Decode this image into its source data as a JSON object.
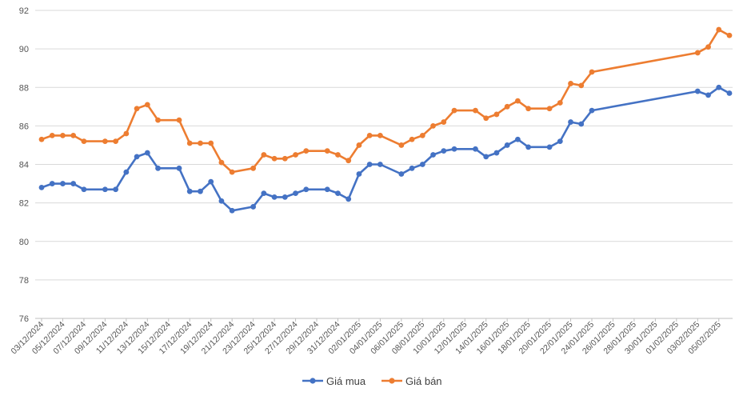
{
  "chart_data": {
    "type": "line",
    "title": "",
    "xlabel": "",
    "ylabel": "",
    "ylim": [
      76,
      92
    ],
    "yticks": [
      76,
      78,
      80,
      82,
      84,
      86,
      88,
      90,
      92
    ],
    "grid": "horizontal",
    "legend_position": "bottom",
    "x_axis": {
      "start": "2024-12-03",
      "end": "2025-02-06",
      "tick_labels": [
        "03/12/2024",
        "05/12/2024",
        "07/12/2024",
        "09/12/2024",
        "11/12/2024",
        "13/12/2024",
        "15/12/2024",
        "17/12/2024",
        "19/12/2024",
        "21/12/2024",
        "23/12/2024",
        "25/12/2024",
        "27/12/2024",
        "29/12/2024",
        "31/12/2024",
        "02/01/2025",
        "04/01/2025",
        "06/01/2025",
        "08/01/2025",
        "10/01/2025",
        "12/01/2025",
        "14/01/2025",
        "16/01/2025",
        "18/01/2025",
        "20/01/2025",
        "22/01/2025",
        "24/01/2025",
        "26/01/2025",
        "28/01/2025",
        "30/01/2025",
        "01/02/2025",
        "03/02/2025",
        "05/02/2025"
      ]
    },
    "series": [
      {
        "name": "Giá mua",
        "color": "#4472C4",
        "points": [
          [
            "2024-12-03",
            82.8
          ],
          [
            "2024-12-04",
            83.0
          ],
          [
            "2024-12-05",
            83.0
          ],
          [
            "2024-12-06",
            83.0
          ],
          [
            "2024-12-07",
            82.7
          ],
          [
            "2024-12-09",
            82.7
          ],
          [
            "2024-12-10",
            82.7
          ],
          [
            "2024-12-11",
            83.6
          ],
          [
            "2024-12-12",
            84.4
          ],
          [
            "2024-12-13",
            84.6
          ],
          [
            "2024-12-14",
            83.8
          ],
          [
            "2024-12-16",
            83.8
          ],
          [
            "2024-12-17",
            82.6
          ],
          [
            "2024-12-18",
            82.6
          ],
          [
            "2024-12-19",
            83.1
          ],
          [
            "2024-12-20",
            82.1
          ],
          [
            "2024-12-21",
            81.6
          ],
          [
            "2024-12-23",
            81.8
          ],
          [
            "2024-12-24",
            82.5
          ],
          [
            "2024-12-25",
            82.3
          ],
          [
            "2024-12-26",
            82.3
          ],
          [
            "2024-12-27",
            82.5
          ],
          [
            "2024-12-28",
            82.7
          ],
          [
            "2024-12-30",
            82.7
          ],
          [
            "2024-12-31",
            82.5
          ],
          [
            "2025-01-01",
            82.2
          ],
          [
            "2025-01-02",
            83.5
          ],
          [
            "2025-01-03",
            84.0
          ],
          [
            "2025-01-04",
            84.0
          ],
          [
            "2025-01-06",
            83.5
          ],
          [
            "2025-01-07",
            83.8
          ],
          [
            "2025-01-08",
            84.0
          ],
          [
            "2025-01-09",
            84.5
          ],
          [
            "2025-01-10",
            84.7
          ],
          [
            "2025-01-11",
            84.8
          ],
          [
            "2025-01-13",
            84.8
          ],
          [
            "2025-01-14",
            84.4
          ],
          [
            "2025-01-15",
            84.6
          ],
          [
            "2025-01-16",
            85.0
          ],
          [
            "2025-01-17",
            85.3
          ],
          [
            "2025-01-18",
            84.9
          ],
          [
            "2025-01-20",
            84.9
          ],
          [
            "2025-01-21",
            85.2
          ],
          [
            "2025-01-22",
            86.2
          ],
          [
            "2025-01-23",
            86.1
          ],
          [
            "2025-01-24",
            86.8
          ],
          [
            "2025-02-03",
            87.8
          ],
          [
            "2025-02-04",
            87.6
          ],
          [
            "2025-02-05",
            88.0
          ],
          [
            "2025-02-06",
            87.7
          ]
        ]
      },
      {
        "name": "Giá bán",
        "color": "#ED7D31",
        "points": [
          [
            "2024-12-03",
            85.3
          ],
          [
            "2024-12-04",
            85.5
          ],
          [
            "2024-12-05",
            85.5
          ],
          [
            "2024-12-06",
            85.5
          ],
          [
            "2024-12-07",
            85.2
          ],
          [
            "2024-12-09",
            85.2
          ],
          [
            "2024-12-10",
            85.2
          ],
          [
            "2024-12-11",
            85.6
          ],
          [
            "2024-12-12",
            86.9
          ],
          [
            "2024-12-13",
            87.1
          ],
          [
            "2024-12-14",
            86.3
          ],
          [
            "2024-12-16",
            86.3
          ],
          [
            "2024-12-17",
            85.1
          ],
          [
            "2024-12-18",
            85.1
          ],
          [
            "2024-12-19",
            85.1
          ],
          [
            "2024-12-20",
            84.1
          ],
          [
            "2024-12-21",
            83.6
          ],
          [
            "2024-12-23",
            83.8
          ],
          [
            "2024-12-24",
            84.5
          ],
          [
            "2024-12-25",
            84.3
          ],
          [
            "2024-12-26",
            84.3
          ],
          [
            "2024-12-27",
            84.5
          ],
          [
            "2024-12-28",
            84.7
          ],
          [
            "2024-12-30",
            84.7
          ],
          [
            "2024-12-31",
            84.5
          ],
          [
            "2025-01-01",
            84.2
          ],
          [
            "2025-01-02",
            85.0
          ],
          [
            "2025-01-03",
            85.5
          ],
          [
            "2025-01-04",
            85.5
          ],
          [
            "2025-01-06",
            85.0
          ],
          [
            "2025-01-07",
            85.3
          ],
          [
            "2025-01-08",
            85.5
          ],
          [
            "2025-01-09",
            86.0
          ],
          [
            "2025-01-10",
            86.2
          ],
          [
            "2025-01-11",
            86.8
          ],
          [
            "2025-01-13",
            86.8
          ],
          [
            "2025-01-14",
            86.4
          ],
          [
            "2025-01-15",
            86.6
          ],
          [
            "2025-01-16",
            87.0
          ],
          [
            "2025-01-17",
            87.3
          ],
          [
            "2025-01-18",
            86.9
          ],
          [
            "2025-01-20",
            86.9
          ],
          [
            "2025-01-21",
            87.2
          ],
          [
            "2025-01-22",
            88.2
          ],
          [
            "2025-01-23",
            88.1
          ],
          [
            "2025-01-24",
            88.8
          ],
          [
            "2025-02-03",
            89.8
          ],
          [
            "2025-02-04",
            90.1
          ],
          [
            "2025-02-05",
            91.0
          ],
          [
            "2025-02-06",
            90.7
          ]
        ]
      }
    ]
  }
}
